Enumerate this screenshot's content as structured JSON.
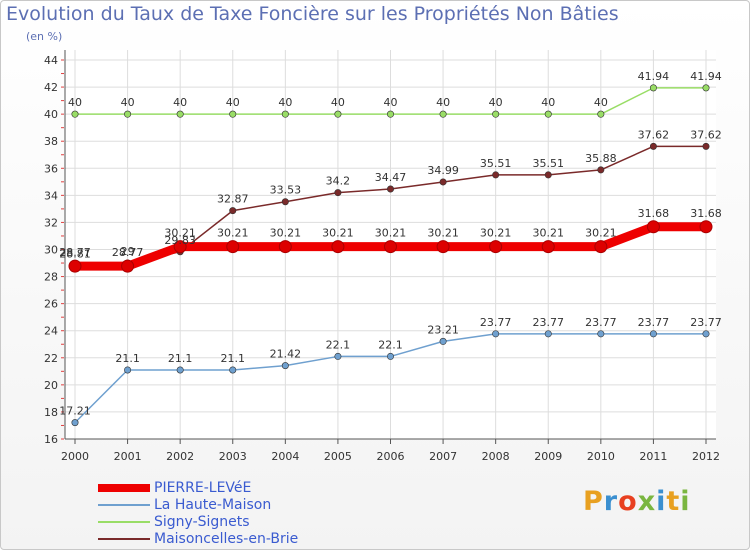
{
  "chart_data": {
    "type": "line",
    "title": "Evolution du Taux de Taxe Foncière sur les Propriétés Non Bâties",
    "subtitle": "(en %)",
    "x": [
      "2000",
      "2001",
      "2002",
      "2003",
      "2004",
      "2005",
      "2006",
      "2007",
      "2008",
      "2009",
      "2010",
      "2011",
      "2012"
    ],
    "ylim": [
      16,
      44
    ],
    "yticks": [
      16,
      18,
      20,
      22,
      24,
      26,
      28,
      30,
      32,
      34,
      36,
      38,
      40,
      42,
      44
    ],
    "grid": true,
    "legend_position": "bottom-left",
    "series": [
      {
        "name": "PIERRE-LEVéE",
        "color": "#ee0000",
        "values": [
          28.77,
          28.77,
          30.21,
          30.21,
          30.21,
          30.21,
          30.21,
          30.21,
          30.21,
          30.21,
          30.21,
          31.68,
          31.68
        ],
        "labels": [
          "28.77",
          "28.77",
          "30.21",
          "30.21",
          "30.21",
          "30.21",
          "30.21",
          "30.21",
          "30.21",
          "30.21",
          "30.21",
          "31.68",
          "31.68"
        ]
      },
      {
        "name": "La Haute-Maison",
        "color": "#6fa0cf",
        "values": [
          17.21,
          21.1,
          21.1,
          21.1,
          21.42,
          22.1,
          22.1,
          23.21,
          23.77,
          23.77,
          23.77,
          23.77,
          23.77
        ],
        "labels": [
          "17.21",
          "21.1",
          "21.1",
          "21.1",
          "21.42",
          "22.1",
          "22.1",
          "23.21",
          "23.77",
          "23.77",
          "23.77",
          "23.77",
          "23.77"
        ]
      },
      {
        "name": "Signy-Signets",
        "color": "#99dd66",
        "values": [
          40,
          40,
          40,
          40,
          40,
          40,
          40,
          40,
          40,
          40,
          40,
          41.94,
          41.94
        ],
        "labels": [
          "40",
          "40",
          "40",
          "40",
          "40",
          "40",
          "40",
          "40",
          "40",
          "40",
          "40",
          "41.94",
          "41.94"
        ]
      },
      {
        "name": "Maisoncelles-en-Brie",
        "color": "#7a2a2a",
        "values": [
          28.81,
          29.0,
          29.83,
          32.87,
          33.53,
          34.2,
          34.47,
          34.99,
          35.51,
          35.51,
          35.88,
          37.62,
          37.62
        ],
        "labels": [
          "28.81",
          "29",
          "29.83",
          "32.87",
          "33.53",
          "34.2",
          "34.47",
          "34.99",
          "35.51",
          "35.51",
          "35.88",
          "37.62",
          "37.62"
        ]
      }
    ]
  },
  "branding": {
    "logo_text": "Proxiti",
    "logo_colors": [
      "#e8a020",
      "#3a8fd0",
      "#e84020",
      "#7ab640",
      "#3a8fd0",
      "#e8a020",
      "#7ab640"
    ]
  }
}
